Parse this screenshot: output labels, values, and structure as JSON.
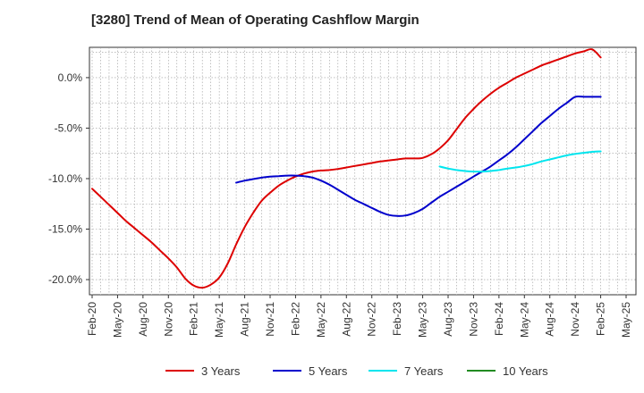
{
  "chart_data": {
    "type": "line",
    "title": "[3280]  Trend of Mean of Operating Cashflow Margin",
    "xlabel": "",
    "ylabel": "",
    "x_ticks": [
      "Feb-20",
      "May-20",
      "Aug-20",
      "Nov-20",
      "Feb-21",
      "May-21",
      "Aug-21",
      "Nov-21",
      "Feb-22",
      "May-22",
      "Aug-22",
      "Nov-22",
      "Feb-23",
      "May-23",
      "Aug-23",
      "Nov-23",
      "Feb-24",
      "May-24",
      "Aug-24",
      "Nov-24",
      "Feb-25",
      "May-25"
    ],
    "y_ticks": [
      "0.0%",
      "-5.0%",
      "-10.0%",
      "-15.0%",
      "-20.0%"
    ],
    "ylim": [
      -21.5,
      3.0
    ],
    "grid": true,
    "legend_position": "bottom",
    "series": [
      {
        "name": "3 Years",
        "color": "#dd0000",
        "x": [
          "Feb-20",
          "Mar-20",
          "Apr-20",
          "May-20",
          "Jun-20",
          "Jul-20",
          "Aug-20",
          "Sep-20",
          "Oct-20",
          "Nov-20",
          "Dec-20",
          "Jan-21",
          "Feb-21",
          "Mar-21",
          "Apr-21",
          "May-21",
          "Jun-21",
          "Jul-21",
          "Aug-21",
          "Sep-21",
          "Oct-21",
          "Nov-21",
          "Dec-21",
          "Jan-22",
          "Feb-22",
          "Mar-22",
          "Apr-22",
          "May-22",
          "Jun-22",
          "Jul-22",
          "Aug-22",
          "Sep-22",
          "Oct-22",
          "Nov-22",
          "Dec-22",
          "Jan-23",
          "Feb-23",
          "Mar-23",
          "Apr-23",
          "May-23",
          "Jun-23",
          "Jul-23",
          "Aug-23",
          "Sep-23",
          "Oct-23",
          "Nov-23",
          "Dec-23",
          "Jan-24",
          "Feb-24",
          "Mar-24",
          "Apr-24",
          "May-24",
          "Jun-24",
          "Jul-24",
          "Aug-24",
          "Sep-24",
          "Oct-24",
          "Nov-24",
          "Dec-24",
          "Jan-25",
          "Feb-25"
        ],
        "values": [
          -11.0,
          -11.8,
          -12.6,
          -13.4,
          -14.2,
          -14.9,
          -15.6,
          -16.3,
          -17.1,
          -17.9,
          -18.8,
          -19.9,
          -20.6,
          -20.8,
          -20.5,
          -19.8,
          -18.4,
          -16.5,
          -14.8,
          -13.4,
          -12.2,
          -11.4,
          -10.7,
          -10.2,
          -9.8,
          -9.5,
          -9.3,
          -9.2,
          -9.15,
          -9.05,
          -8.9,
          -8.75,
          -8.6,
          -8.45,
          -8.3,
          -8.2,
          -8.1,
          -8.0,
          -8.0,
          -7.95,
          -7.6,
          -7.0,
          -6.2,
          -5.1,
          -4.0,
          -3.1,
          -2.3,
          -1.6,
          -1.0,
          -0.5,
          0.0,
          0.4,
          0.8,
          1.2,
          1.5,
          1.8,
          2.1,
          2.4,
          2.6,
          2.8,
          2.0
        ],
        "x_note": ""
      },
      {
        "name": "5 Years",
        "color": "#0000cc",
        "x": [
          "Jul-21",
          "Aug-21",
          "Sep-21",
          "Oct-21",
          "Nov-21",
          "Dec-21",
          "Jan-22",
          "Feb-22",
          "Mar-22",
          "Apr-22",
          "May-22",
          "Jun-22",
          "Jul-22",
          "Aug-22",
          "Sep-22",
          "Oct-22",
          "Nov-22",
          "Dec-22",
          "Jan-23",
          "Feb-23",
          "Mar-23",
          "Apr-23",
          "May-23",
          "Jun-23",
          "Jul-23",
          "Aug-23",
          "Sep-23",
          "Oct-23",
          "Nov-23",
          "Dec-23",
          "Jan-24",
          "Feb-24",
          "Mar-24",
          "Apr-24",
          "May-24",
          "Jun-24",
          "Jul-24",
          "Aug-24",
          "Sep-24",
          "Oct-24",
          "Nov-24",
          "Dec-24",
          "Jan-25",
          "Feb-25"
        ],
        "values": [
          -10.4,
          -10.2,
          -10.05,
          -9.9,
          -9.8,
          -9.75,
          -9.7,
          -9.7,
          -9.75,
          -9.9,
          -10.2,
          -10.6,
          -11.1,
          -11.6,
          -12.1,
          -12.5,
          -12.9,
          -13.3,
          -13.6,
          -13.7,
          -13.65,
          -13.4,
          -13.0,
          -12.4,
          -11.8,
          -11.3,
          -10.8,
          -10.3,
          -9.8,
          -9.3,
          -8.8,
          -8.2,
          -7.6,
          -6.9,
          -6.1,
          -5.3,
          -4.5,
          -3.8,
          -3.1,
          -2.5,
          -1.9,
          -1.9,
          -1.9,
          -1.9
        ]
      },
      {
        "name": "7 Years",
        "color": "#00e5ee",
        "x": [
          "Jul-23",
          "Aug-23",
          "Sep-23",
          "Oct-23",
          "Nov-23",
          "Dec-23",
          "Jan-24",
          "Feb-24",
          "Mar-24",
          "Apr-24",
          "May-24",
          "Jun-24",
          "Jul-24",
          "Aug-24",
          "Sep-24",
          "Oct-24",
          "Nov-24",
          "Dec-24",
          "Jan-25",
          "Feb-25"
        ],
        "values": [
          -8.8,
          -9.0,
          -9.15,
          -9.25,
          -9.3,
          -9.3,
          -9.25,
          -9.15,
          -9.0,
          -8.9,
          -8.75,
          -8.55,
          -8.3,
          -8.1,
          -7.9,
          -7.7,
          -7.55,
          -7.45,
          -7.35,
          -7.3
        ]
      },
      {
        "name": "10 Years",
        "color": "#228b22",
        "x": [],
        "values": []
      }
    ]
  }
}
